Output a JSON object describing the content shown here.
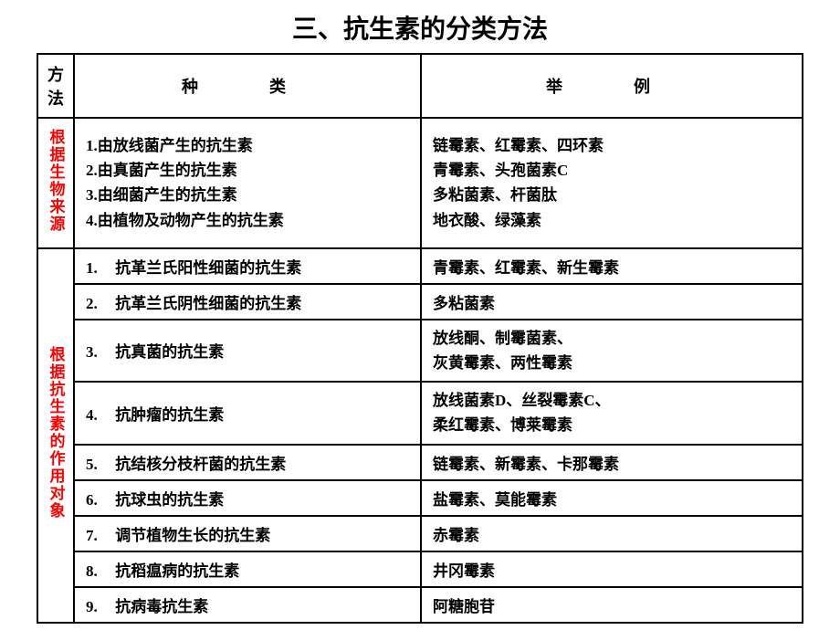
{
  "title": "三、抗生素的分类方法",
  "headers": {
    "method": "方法",
    "type": "种　类",
    "example": "举　例"
  },
  "section1": {
    "label": "根据生物来源",
    "types": {
      "line1": "1.由放线菌产生的抗生素",
      "line2": "2.由真菌产生的抗生素",
      "line3": "3.由细菌产生的抗生素",
      "line4": "4.由植物及动物产生的抗生素"
    },
    "examples": {
      "line1": "链霉素、红霉素、四环素",
      "line2": "青霉素、头孢菌素C",
      "line3": "多粘菌素、杆菌肽",
      "line4": "地衣酸、绿藻素"
    }
  },
  "section2": {
    "label": "根据抗生素的作用对象",
    "rows": [
      {
        "num": "1.",
        "type": "抗革兰氏阳性细菌的抗生素",
        "example": "青霉素、红霉素、新生霉素"
      },
      {
        "num": "2.",
        "type": "抗革兰氏阴性细菌的抗生素",
        "example": "多粘菌素"
      },
      {
        "num": "3.",
        "type": "抗真菌的抗生素",
        "example": "放线酮、制霉菌素、\n灰黄霉素、两性霉素"
      },
      {
        "num": "4.",
        "type": "抗肿瘤的抗生素",
        "example": "放线菌素D、丝裂霉素C、\n柔红霉素、博莱霉素"
      },
      {
        "num": "5.",
        "type": "抗结核分枝杆菌的抗生素",
        "example": "链霉素、新霉素、卡那霉素"
      },
      {
        "num": "6.",
        "type": "抗球虫的抗生素",
        "example": "盐霉素、莫能霉素"
      },
      {
        "num": "7.",
        "type": "调节植物生长的抗生素",
        "example": "赤霉素"
      },
      {
        "num": "8.",
        "type": "抗稻瘟病的抗生素",
        "example": "井冈霉素"
      },
      {
        "num": "9.",
        "type": "抗病毒抗生素",
        "example": "阿糖胞苷"
      }
    ]
  },
  "colors": {
    "red": "#ff0000",
    "black": "#000000",
    "background": "#ffffff"
  }
}
